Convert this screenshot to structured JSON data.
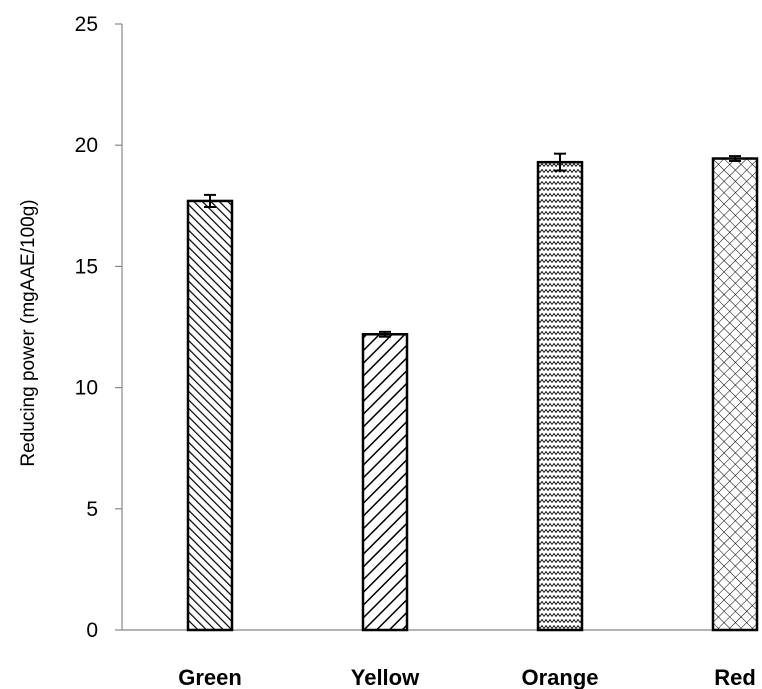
{
  "chart_data": {
    "type": "bar",
    "title": "",
    "xlabel": "",
    "ylabel": "Reducing power (mgAAE/100g)",
    "ylim": [
      0,
      25
    ],
    "yticks": [
      0,
      5,
      10,
      15,
      20,
      25
    ],
    "categories": [
      "Green",
      "Yellow",
      "Orange",
      "Red"
    ],
    "values": [
      17.7,
      12.2,
      19.3,
      19.45
    ],
    "errors": [
      0.25,
      0.1,
      0.35,
      0.1
    ],
    "patterns": [
      "dense-diagonal-hatch",
      "diagonal-hatch",
      "zigzag",
      "crosshatch"
    ],
    "grid": false,
    "legend": "none",
    "colors": {
      "bar_stroke": "#000000",
      "bar_pattern": "#000000",
      "background": "#ffffff"
    }
  }
}
